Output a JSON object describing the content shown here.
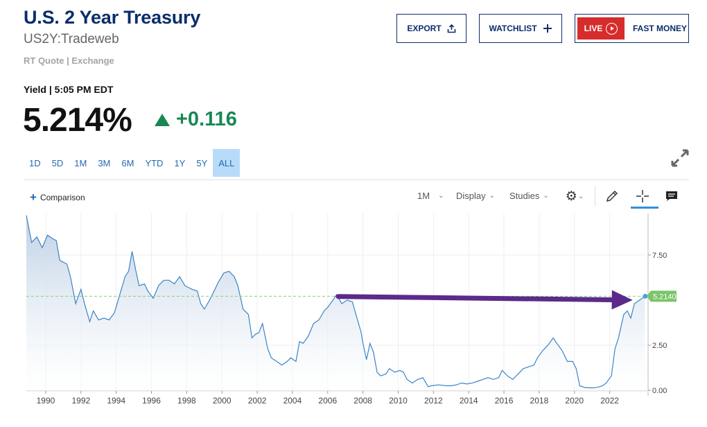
{
  "header": {
    "title": "U.S. 2 Year Treasury",
    "symbol": "US2Y:Tradeweb",
    "quote_source": "RT Quote | Exchange",
    "export_label": "EXPORT",
    "watchlist_label": "WATCHLIST",
    "live_label": "LIVE",
    "fast_money_label": "FAST MONEY"
  },
  "quote": {
    "yield_label": "Yield | 5:05 PM EDT",
    "price": "5.214%",
    "change": "+0.116",
    "change_color": "#198754"
  },
  "ranges": {
    "items": [
      "1D",
      "5D",
      "1M",
      "3M",
      "6M",
      "YTD",
      "1Y",
      "5Y",
      "ALL"
    ],
    "active": "ALL"
  },
  "toolbar": {
    "comparison_label": "Comparison",
    "interval_label": "1M",
    "display_label": "Display",
    "studies_label": "Studies"
  },
  "icons": [
    "upload-icon",
    "plus-icon",
    "play-icon",
    "expand-icon",
    "gear-icon",
    "pencil-icon",
    "crosshair-icon",
    "comment-icon"
  ],
  "chart_data": {
    "type": "area",
    "x_ticks": [
      "1990",
      "1992",
      "1994",
      "1996",
      "1998",
      "2000",
      "2002",
      "2004",
      "2006",
      "2008",
      "2010",
      "2012",
      "2014",
      "2016",
      "2018",
      "2020",
      "2022"
    ],
    "y_ticks": [
      "7.50",
      "2.50",
      "0.00"
    ],
    "ylim": [
      0,
      9.8
    ],
    "xlim": [
      1988.9,
      2024.1
    ],
    "last_value_label": "5.2140",
    "last_value": 5.214,
    "line_color": "#3c83c6",
    "fill_color": "#c9d9ea",
    "arrow_color": "#5b2a8a",
    "series": [
      {
        "points": [
          [
            1988.9,
            9.7
          ],
          [
            1989.2,
            8.2
          ],
          [
            1989.5,
            8.5
          ],
          [
            1989.8,
            7.9
          ],
          [
            1990.1,
            8.6
          ],
          [
            1990.4,
            8.4
          ],
          [
            1990.6,
            8.3
          ],
          [
            1990.8,
            7.2
          ],
          [
            1991.2,
            7.0
          ],
          [
            1991.4,
            6.3
          ],
          [
            1991.7,
            4.8
          ],
          [
            1992.0,
            5.6
          ],
          [
            1992.2,
            4.8
          ],
          [
            1992.5,
            3.8
          ],
          [
            1992.7,
            4.4
          ],
          [
            1993.0,
            3.9
          ],
          [
            1993.3,
            4.0
          ],
          [
            1993.6,
            3.9
          ],
          [
            1993.9,
            4.3
          ],
          [
            1994.2,
            5.3
          ],
          [
            1994.5,
            6.3
          ],
          [
            1994.7,
            6.6
          ],
          [
            1994.9,
            7.7
          ],
          [
            1995.1,
            6.7
          ],
          [
            1995.3,
            5.8
          ],
          [
            1995.6,
            5.9
          ],
          [
            1995.8,
            5.5
          ],
          [
            1996.1,
            5.1
          ],
          [
            1996.4,
            5.8
          ],
          [
            1996.7,
            6.1
          ],
          [
            1997.0,
            6.1
          ],
          [
            1997.3,
            5.9
          ],
          [
            1997.6,
            6.3
          ],
          [
            1997.9,
            5.8
          ],
          [
            1998.3,
            5.6
          ],
          [
            1998.6,
            5.5
          ],
          [
            1998.8,
            4.8
          ],
          [
            1999.0,
            4.5
          ],
          [
            1999.3,
            5.0
          ],
          [
            1999.6,
            5.6
          ],
          [
            1999.8,
            6.0
          ],
          [
            2000.1,
            6.5
          ],
          [
            2000.4,
            6.6
          ],
          [
            2000.7,
            6.3
          ],
          [
            2000.9,
            5.8
          ],
          [
            2001.2,
            4.5
          ],
          [
            2001.5,
            4.2
          ],
          [
            2001.7,
            2.9
          ],
          [
            2001.9,
            3.1
          ],
          [
            2002.1,
            3.2
          ],
          [
            2002.3,
            3.7
          ],
          [
            2002.6,
            2.3
          ],
          [
            2002.8,
            1.8
          ],
          [
            2003.1,
            1.6
          ],
          [
            2003.4,
            1.4
          ],
          [
            2003.7,
            1.6
          ],
          [
            2003.9,
            1.8
          ],
          [
            2004.2,
            1.6
          ],
          [
            2004.4,
            2.7
          ],
          [
            2004.6,
            2.6
          ],
          [
            2004.9,
            3.0
          ],
          [
            2005.2,
            3.7
          ],
          [
            2005.5,
            3.9
          ],
          [
            2005.8,
            4.4
          ],
          [
            2006.0,
            4.6
          ],
          [
            2006.3,
            5.0
          ],
          [
            2006.5,
            5.3
          ],
          [
            2006.8,
            4.8
          ],
          [
            2007.1,
            5.0
          ],
          [
            2007.4,
            4.9
          ],
          [
            2007.6,
            4.2
          ],
          [
            2007.9,
            3.2
          ],
          [
            2008.0,
            2.6
          ],
          [
            2008.2,
            1.7
          ],
          [
            2008.4,
            2.6
          ],
          [
            2008.6,
            2.1
          ],
          [
            2008.8,
            1.0
          ],
          [
            2009.0,
            0.8
          ],
          [
            2009.3,
            0.9
          ],
          [
            2009.5,
            1.2
          ],
          [
            2009.8,
            1.0
          ],
          [
            2010.1,
            1.1
          ],
          [
            2010.3,
            1.0
          ],
          [
            2010.5,
            0.6
          ],
          [
            2010.8,
            0.4
          ],
          [
            2011.1,
            0.6
          ],
          [
            2011.4,
            0.7
          ],
          [
            2011.7,
            0.2
          ],
          [
            2011.9,
            0.25
          ],
          [
            2012.3,
            0.3
          ],
          [
            2012.7,
            0.25
          ],
          [
            2013.0,
            0.25
          ],
          [
            2013.3,
            0.3
          ],
          [
            2013.6,
            0.4
          ],
          [
            2013.9,
            0.35
          ],
          [
            2014.2,
            0.4
          ],
          [
            2014.5,
            0.5
          ],
          [
            2014.8,
            0.6
          ],
          [
            2015.1,
            0.7
          ],
          [
            2015.4,
            0.6
          ],
          [
            2015.7,
            0.7
          ],
          [
            2015.9,
            1.1
          ],
          [
            2016.2,
            0.8
          ],
          [
            2016.5,
            0.6
          ],
          [
            2016.8,
            0.9
          ],
          [
            2017.1,
            1.2
          ],
          [
            2017.4,
            1.3
          ],
          [
            2017.7,
            1.4
          ],
          [
            2017.9,
            1.8
          ],
          [
            2018.2,
            2.2
          ],
          [
            2018.5,
            2.5
          ],
          [
            2018.8,
            2.9
          ],
          [
            2019.0,
            2.6
          ],
          [
            2019.3,
            2.2
          ],
          [
            2019.6,
            1.6
          ],
          [
            2019.9,
            1.6
          ],
          [
            2020.1,
            1.2
          ],
          [
            2020.3,
            0.25
          ],
          [
            2020.6,
            0.15
          ],
          [
            2021.0,
            0.13
          ],
          [
            2021.3,
            0.16
          ],
          [
            2021.6,
            0.25
          ],
          [
            2021.8,
            0.4
          ],
          [
            2022.1,
            0.8
          ],
          [
            2022.3,
            2.3
          ],
          [
            2022.5,
            2.9
          ],
          [
            2022.8,
            4.2
          ],
          [
            2023.0,
            4.4
          ],
          [
            2023.2,
            4.0
          ],
          [
            2023.4,
            4.8
          ],
          [
            2023.7,
            5.0
          ],
          [
            2024.0,
            5.21
          ]
        ]
      }
    ],
    "annotation": {
      "from": [
        2006.6,
        5.2
      ],
      "to": [
        2023.3,
        5.0
      ]
    }
  }
}
